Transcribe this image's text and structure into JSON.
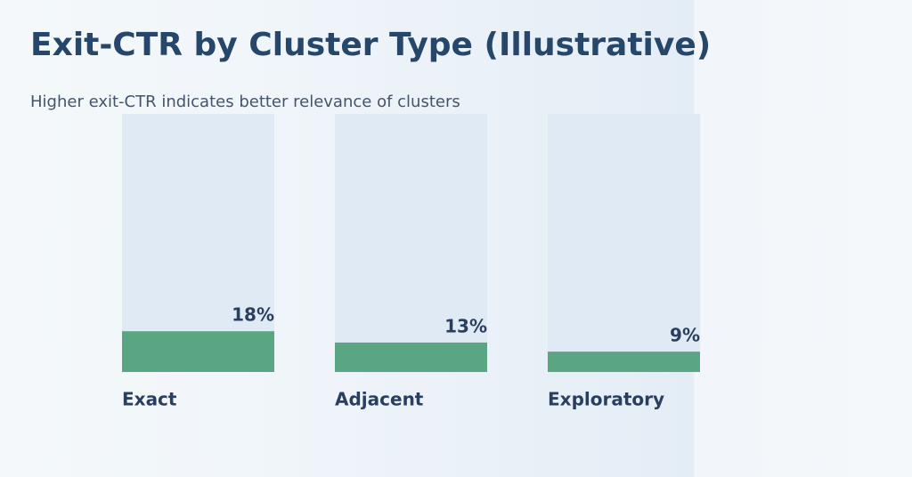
{
  "chart_data": {
    "type": "bar",
    "title": "Exit-CTR by Cluster Type (Illustrative)",
    "subtitle": "Higher exit-CTR indicates better relevance of clusters",
    "categories": [
      "Exact",
      "Adjacent",
      "Exploratory"
    ],
    "values": [
      18,
      13,
      9
    ],
    "value_labels": [
      "18%",
      "13%",
      "9%"
    ],
    "color": "#5aa683",
    "ylim": [
      0,
      114
    ]
  }
}
